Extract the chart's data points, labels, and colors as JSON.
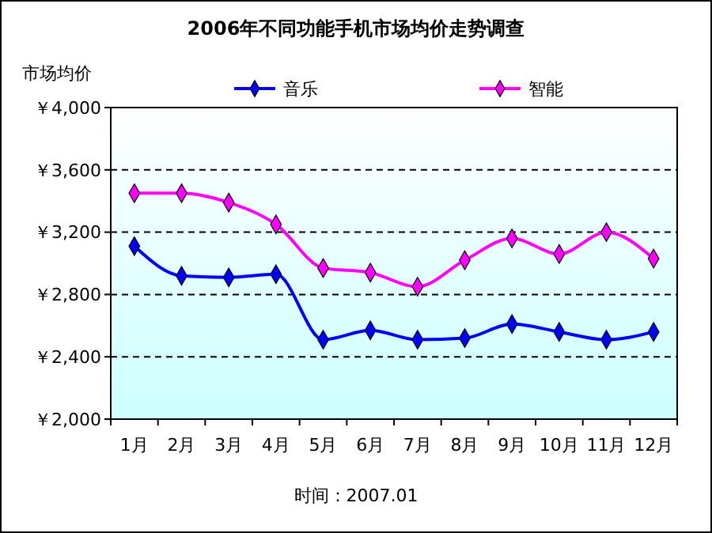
{
  "chart_data": {
    "type": "line",
    "title": "2006年不同功能手机市场均价走势调查",
    "ylabel": "市场均价",
    "categories": [
      "1月",
      "2月",
      "3月",
      "4月",
      "5月",
      "6月",
      "7月",
      "8月",
      "9月",
      "10月",
      "11月",
      "12月"
    ],
    "series": [
      {
        "name": "音乐",
        "color": "#0000ff",
        "values": [
          3110,
          2920,
          2910,
          2930,
          2510,
          2570,
          2510,
          2520,
          2610,
          2560,
          2510,
          2560
        ]
      },
      {
        "name": "智能",
        "color": "#ff00ff",
        "values": [
          3450,
          3450,
          3390,
          3250,
          2970,
          2940,
          2850,
          3020,
          3160,
          3060,
          3200,
          3030
        ]
      }
    ],
    "ylim": [
      2000,
      4000
    ],
    "yticks": [
      {
        "value": 2000,
        "label": "￥2,000"
      },
      {
        "value": 2400,
        "label": "￥2,400"
      },
      {
        "value": 2800,
        "label": "￥2,800"
      },
      {
        "value": 3200,
        "label": "￥3,200"
      },
      {
        "value": 3600,
        "label": "￥3,600"
      },
      {
        "value": 4000,
        "label": "￥4,000"
      }
    ],
    "grid": "y",
    "legend": "top",
    "marker": "diamond",
    "line_style": "solid",
    "annotations": [
      "时间：2007.01"
    ]
  }
}
